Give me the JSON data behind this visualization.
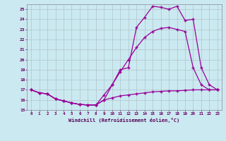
{
  "xlabel": "Windchill (Refroidissement éolien,°C)",
  "background_color": "#cbe9f0",
  "line_color": "#990099",
  "grid_color": "#b0c4cc",
  "xlim": [
    -0.5,
    23.5
  ],
  "ylim": [
    15,
    25.5
  ],
  "yticks": [
    15,
    16,
    17,
    18,
    19,
    20,
    21,
    22,
    23,
    24,
    25
  ],
  "xticks": [
    0,
    1,
    2,
    3,
    4,
    5,
    6,
    7,
    8,
    9,
    10,
    11,
    12,
    13,
    14,
    15,
    16,
    17,
    18,
    19,
    20,
    21,
    22,
    23
  ],
  "line1_x": [
    0,
    1,
    2,
    3,
    4,
    5,
    6,
    7,
    8,
    9,
    10,
    11,
    12,
    13,
    14,
    15,
    16,
    17,
    18,
    19,
    20,
    21,
    22,
    23
  ],
  "line1_y": [
    17.0,
    16.7,
    16.6,
    16.1,
    15.9,
    15.7,
    15.55,
    15.5,
    15.5,
    16.0,
    17.5,
    19.0,
    19.2,
    23.2,
    24.2,
    25.3,
    25.2,
    25.0,
    25.3,
    23.9,
    24.0,
    19.2,
    17.5,
    17.0
  ],
  "line2_x": [
    0,
    1,
    2,
    3,
    4,
    5,
    6,
    7,
    8,
    9,
    10,
    11,
    12,
    13,
    14,
    15,
    16,
    17,
    18,
    19,
    20,
    21,
    22,
    23
  ],
  "line2_y": [
    17.0,
    16.7,
    16.6,
    16.1,
    15.9,
    15.7,
    15.55,
    15.5,
    15.5,
    16.5,
    17.5,
    18.8,
    20.0,
    21.2,
    22.2,
    22.8,
    23.1,
    23.2,
    23.0,
    22.8,
    19.2,
    17.5,
    17.0,
    17.0
  ],
  "line3_x": [
    0,
    1,
    2,
    3,
    4,
    5,
    6,
    7,
    8,
    9,
    10,
    11,
    12,
    13,
    14,
    15,
    16,
    17,
    18,
    19,
    20,
    21,
    22,
    23
  ],
  "line3_y": [
    17.0,
    16.7,
    16.6,
    16.1,
    15.9,
    15.7,
    15.55,
    15.5,
    15.5,
    16.0,
    16.2,
    16.4,
    16.5,
    16.6,
    16.7,
    16.8,
    16.85,
    16.9,
    16.9,
    16.95,
    17.0,
    17.0,
    17.0,
    17.0
  ]
}
